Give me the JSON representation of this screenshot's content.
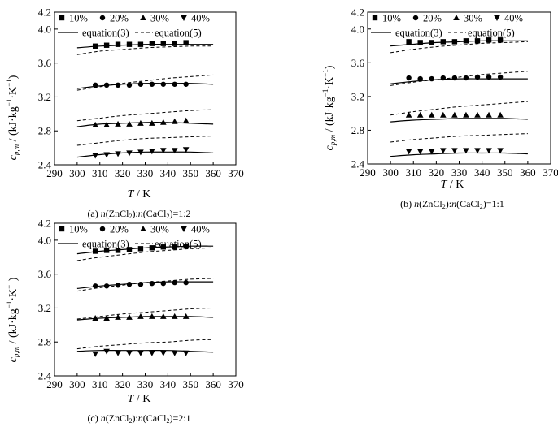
{
  "charts": [
    {
      "caption": "(a) n(ZnCl₂):n(CaCl₂)=1:2",
      "caption_parts": [
        "(a) ",
        "n",
        "(ZnCl",
        "2",
        "):",
        "n",
        "(CaCl",
        "2",
        ")=1:2"
      ],
      "xlabel": {
        "main": "T",
        "unit": " / K"
      },
      "ylabel": {
        "c": "c",
        "sub": "p,m",
        "unit": " / (kJ·kg",
        "exp1": "−1",
        "mid": "·K",
        "exp2": "−1",
        "end": ")"
      }
    },
    {
      "caption": "(b) n(ZnCl₂):n(CaCl₂)=1:1",
      "caption_parts": [
        "(b) ",
        "n",
        "(ZnCl",
        "2",
        "):",
        "n",
        "(CaCl",
        "2",
        ")=1:1"
      ],
      "xlabel": {
        "main": "T",
        "unit": " / K"
      },
      "ylabel": {
        "c": "c",
        "sub": "p,m",
        "unit": " / (kJ·kg",
        "exp1": "−1",
        "mid": "·K",
        "exp2": "−1",
        "end": ")"
      }
    },
    {
      "caption": "(c) n(ZnCl₂):n(CaCl₂)=2:1",
      "caption_parts": [
        "(c) ",
        "n",
        "(ZnCl",
        "2",
        "):",
        "n",
        "(CaCl",
        "2",
        ")=2:1"
      ],
      "xlabel": {
        "main": "T",
        "unit": " / K"
      },
      "ylabel": {
        "c": "c",
        "sub": "p,m",
        "unit": " / (kJ·kg",
        "exp1": "−1",
        "mid": "·K",
        "exp2": "−1",
        "end": ")"
      }
    }
  ],
  "legend": {
    "series_labels": [
      "10%",
      "20%",
      "30%",
      "40%"
    ],
    "eq3_label": "equation(3)",
    "eq5_label": "equation(5)"
  },
  "chart_data": [
    {
      "type": "scatter",
      "title": "",
      "xlabel": "T / K",
      "ylabel": "cp,m / (kJ·kg−1·K−1)",
      "xlim": [
        290,
        370
      ],
      "ylim": [
        2.4,
        4.2
      ],
      "xticks": [
        290,
        300,
        310,
        320,
        330,
        340,
        350,
        360,
        370
      ],
      "yticks": [
        2.4,
        2.8,
        3.2,
        3.6,
        4.0,
        4.2
      ],
      "x": [
        308,
        313,
        318,
        323,
        328,
        333,
        338,
        343,
        348
      ],
      "series": [
        {
          "name": "10%",
          "marker": "square",
          "values": [
            3.8,
            3.81,
            3.82,
            3.82,
            3.82,
            3.83,
            3.83,
            3.83,
            3.84
          ]
        },
        {
          "name": "20%",
          "marker": "circle",
          "values": [
            3.34,
            3.34,
            3.34,
            3.34,
            3.35,
            3.35,
            3.35,
            3.35,
            3.35
          ]
        },
        {
          "name": "30%",
          "marker": "triangle-up",
          "values": [
            2.87,
            2.87,
            2.88,
            2.88,
            2.89,
            2.89,
            2.9,
            2.91,
            2.92
          ]
        },
        {
          "name": "40%",
          "marker": "triangle-down",
          "values": [
            2.51,
            2.52,
            2.53,
            2.54,
            2.55,
            2.56,
            2.57,
            2.57,
            2.58
          ]
        }
      ],
      "curves": {
        "x": [
          300,
          310,
          320,
          330,
          340,
          350,
          360
        ],
        "equation3": [
          [
            3.78,
            3.8,
            3.81,
            3.82,
            3.82,
            3.82,
            3.82
          ],
          [
            3.3,
            3.33,
            3.35,
            3.36,
            3.36,
            3.36,
            3.35
          ],
          [
            2.85,
            2.88,
            2.89,
            2.9,
            2.9,
            2.89,
            2.88
          ],
          [
            2.49,
            2.52,
            2.54,
            2.55,
            2.55,
            2.55,
            2.54
          ]
        ],
        "equation5": [
          [
            3.7,
            3.74,
            3.76,
            3.78,
            3.79,
            3.8,
            3.8
          ],
          [
            3.28,
            3.32,
            3.36,
            3.39,
            3.42,
            3.44,
            3.46
          ],
          [
            2.92,
            2.95,
            2.98,
            3.0,
            3.02,
            3.04,
            3.05
          ],
          [
            2.63,
            2.66,
            2.69,
            2.71,
            2.72,
            2.73,
            2.74
          ]
        ]
      }
    },
    {
      "type": "scatter",
      "title": "",
      "xlabel": "T / K",
      "ylabel": "cp,m / (kJ·kg−1·K−1)",
      "xlim": [
        290,
        370
      ],
      "ylim": [
        2.4,
        4.2
      ],
      "xticks": [
        290,
        300,
        310,
        320,
        330,
        340,
        350,
        360,
        370
      ],
      "yticks": [
        2.4,
        2.8,
        3.2,
        3.6,
        4.0,
        4.2
      ],
      "x": [
        308,
        313,
        318,
        323,
        328,
        333,
        338,
        343,
        348
      ],
      "series": [
        {
          "name": "10%",
          "marker": "square",
          "values": [
            3.85,
            3.84,
            3.84,
            3.85,
            3.85,
            3.86,
            3.86,
            3.87,
            3.87
          ]
        },
        {
          "name": "20%",
          "marker": "circle",
          "values": [
            3.42,
            3.41,
            3.41,
            3.42,
            3.42,
            3.42,
            3.43,
            3.43,
            3.43
          ]
        },
        {
          "name": "30%",
          "marker": "triangle-up",
          "values": [
            2.98,
            2.98,
            2.98,
            2.98,
            2.98,
            2.98,
            2.98,
            2.98,
            2.98
          ]
        },
        {
          "name": "40%",
          "marker": "triangle-down",
          "values": [
            2.55,
            2.55,
            2.55,
            2.56,
            2.56,
            2.56,
            2.56,
            2.56,
            2.56
          ]
        }
      ],
      "curves": {
        "x": [
          300,
          310,
          320,
          330,
          340,
          350,
          360
        ],
        "equation3": [
          [
            3.8,
            3.82,
            3.84,
            3.85,
            3.86,
            3.86,
            3.86
          ],
          [
            3.35,
            3.38,
            3.4,
            3.41,
            3.41,
            3.41,
            3.41
          ],
          [
            2.9,
            2.92,
            2.93,
            2.94,
            2.94,
            2.94,
            2.93
          ],
          [
            2.49,
            2.51,
            2.52,
            2.53,
            2.53,
            2.53,
            2.52
          ]
        ],
        "equation5": [
          [
            3.72,
            3.76,
            3.79,
            3.81,
            3.83,
            3.84,
            3.85
          ],
          [
            3.33,
            3.37,
            3.4,
            3.43,
            3.46,
            3.48,
            3.5
          ],
          [
            2.98,
            3.02,
            3.05,
            3.08,
            3.1,
            3.12,
            3.14
          ],
          [
            2.66,
            2.69,
            2.71,
            2.73,
            2.74,
            2.75,
            2.76
          ]
        ]
      }
    },
    {
      "type": "scatter",
      "title": "",
      "xlabel": "T / K",
      "ylabel": "cp,m / (kJ·kg−1·K−1)",
      "xlim": [
        290,
        370
      ],
      "ylim": [
        2.4,
        4.2
      ],
      "xticks": [
        290,
        300,
        310,
        320,
        330,
        340,
        350,
        360,
        370
      ],
      "yticks": [
        2.4,
        2.8,
        3.2,
        3.6,
        4.0,
        4.2
      ],
      "x": [
        308,
        313,
        318,
        323,
        328,
        333,
        338,
        343,
        348
      ],
      "series": [
        {
          "name": "10%",
          "marker": "square",
          "values": [
            3.87,
            3.88,
            3.88,
            3.89,
            3.9,
            3.91,
            3.92,
            3.92,
            3.93
          ]
        },
        {
          "name": "20%",
          "marker": "circle",
          "values": [
            3.46,
            3.46,
            3.47,
            3.48,
            3.48,
            3.49,
            3.49,
            3.5,
            3.5
          ]
        },
        {
          "name": "30%",
          "marker": "triangle-up",
          "values": [
            3.08,
            3.08,
            3.09,
            3.09,
            3.1,
            3.1,
            3.1,
            3.1,
            3.1
          ]
        },
        {
          "name": "40%",
          "marker": "triangle-down",
          "values": [
            2.66,
            2.69,
            2.67,
            2.67,
            2.67,
            2.67,
            2.67,
            2.67,
            2.67
          ]
        }
      ],
      "curves": {
        "x": [
          300,
          310,
          320,
          330,
          340,
          350,
          360
        ],
        "equation3": [
          [
            3.84,
            3.87,
            3.89,
            3.91,
            3.92,
            3.93,
            3.93
          ],
          [
            3.43,
            3.46,
            3.48,
            3.5,
            3.51,
            3.51,
            3.51
          ],
          [
            3.06,
            3.08,
            3.09,
            3.1,
            3.1,
            3.1,
            3.09
          ],
          [
            2.69,
            2.7,
            2.7,
            2.7,
            2.7,
            2.69,
            2.68
          ]
        ],
        "equation5": [
          [
            3.76,
            3.8,
            3.83,
            3.86,
            3.88,
            3.9,
            3.91
          ],
          [
            3.4,
            3.44,
            3.47,
            3.5,
            3.52,
            3.54,
            3.55
          ],
          [
            3.07,
            3.1,
            3.13,
            3.15,
            3.17,
            3.19,
            3.2
          ],
          [
            2.72,
            2.75,
            2.77,
            2.79,
            2.8,
            2.82,
            2.83
          ]
        ]
      }
    }
  ]
}
